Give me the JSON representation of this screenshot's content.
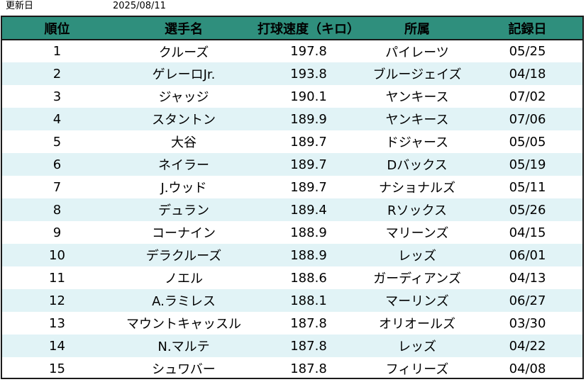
{
  "meta": {
    "updated_label": "更新日",
    "updated_date": "2025/08/11"
  },
  "table": {
    "headers": {
      "rank": "順位",
      "player": "選手名",
      "speed": "打球速度（キロ）",
      "team": "所属",
      "date": "記録日"
    },
    "rows": [
      {
        "rank": "1",
        "player": "クルーズ",
        "speed": "197.8",
        "team": "パイレーツ",
        "date": "05/25"
      },
      {
        "rank": "2",
        "player": "ゲレーロJr.",
        "speed": "193.8",
        "team": "ブルージェイズ",
        "date": "04/18"
      },
      {
        "rank": "3",
        "player": "ジャッジ",
        "speed": "190.1",
        "team": "ヤンキース",
        "date": "07/02"
      },
      {
        "rank": "4",
        "player": "スタントン",
        "speed": "189.9",
        "team": "ヤンキース",
        "date": "07/06"
      },
      {
        "rank": "5",
        "player": "大谷",
        "speed": "189.7",
        "team": "ドジャース",
        "date": "05/05"
      },
      {
        "rank": "6",
        "player": "ネイラー",
        "speed": "189.7",
        "team": "Dバックス",
        "date": "05/19"
      },
      {
        "rank": "7",
        "player": "J.ウッド",
        "speed": "189.7",
        "team": "ナショナルズ",
        "date": "05/11"
      },
      {
        "rank": "8",
        "player": "デュラン",
        "speed": "189.4",
        "team": "Rソックス",
        "date": "05/26"
      },
      {
        "rank": "9",
        "player": "コーナイン",
        "speed": "188.9",
        "team": "マリーンズ",
        "date": "04/15"
      },
      {
        "rank": "10",
        "player": "デラクルーズ",
        "speed": "188.9",
        "team": "レッズ",
        "date": "06/01"
      },
      {
        "rank": "11",
        "player": "ノエル",
        "speed": "188.6",
        "team": "ガーディアンズ",
        "date": "04/13"
      },
      {
        "rank": "12",
        "player": "A.ラミレス",
        "speed": "188.1",
        "team": "マーリンズ",
        "date": "06/27"
      },
      {
        "rank": "13",
        "player": "マウントキャッスル",
        "speed": "187.8",
        "team": "オリオールズ",
        "date": "03/30"
      },
      {
        "rank": "14",
        "player": "N.マルテ",
        "speed": "187.8",
        "team": "レッズ",
        "date": "04/22"
      },
      {
        "rank": "15",
        "player": "シュワバー",
        "speed": "187.8",
        "team": "フィリーズ",
        "date": "04/08"
      }
    ]
  },
  "colors": {
    "header_bg": "#2f8f7d",
    "stripe_bg": "#e1f3f6",
    "border": "#1a1a1a"
  }
}
